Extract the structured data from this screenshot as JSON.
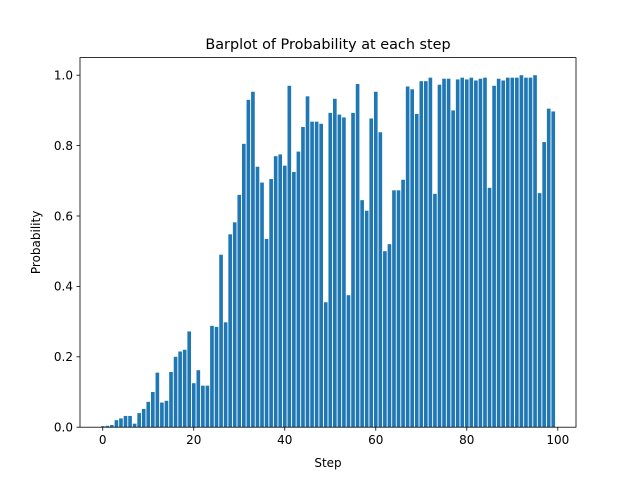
{
  "chart_data": {
    "type": "bar",
    "title": "Barplot of Probability at each step",
    "xlabel": "Step",
    "ylabel": "Probability",
    "xlim": [
      -5,
      104
    ],
    "ylim": [
      0,
      1.05
    ],
    "xticks": [
      0,
      20,
      40,
      60,
      80,
      100
    ],
    "yticks": [
      0.0,
      0.2,
      0.4,
      0.6,
      0.8,
      1.0
    ],
    "xtick_labels": [
      "0",
      "20",
      "40",
      "60",
      "80",
      "100"
    ],
    "ytick_labels": [
      "0.0",
      "0.2",
      "0.4",
      "0.6",
      "0.8",
      "1.0"
    ],
    "bar_color": "#1f77b4",
    "x": [
      0,
      1,
      2,
      3,
      4,
      5,
      6,
      7,
      8,
      9,
      10,
      11,
      12,
      13,
      14,
      15,
      16,
      17,
      18,
      19,
      20,
      21,
      22,
      23,
      24,
      25,
      26,
      27,
      28,
      29,
      30,
      31,
      32,
      33,
      34,
      35,
      36,
      37,
      38,
      39,
      40,
      41,
      42,
      43,
      44,
      45,
      46,
      47,
      48,
      49,
      50,
      51,
      52,
      53,
      54,
      55,
      56,
      57,
      58,
      59,
      60,
      61,
      62,
      63,
      64,
      65,
      66,
      67,
      68,
      69,
      70,
      71,
      72,
      73,
      74,
      75,
      76,
      77,
      78,
      79,
      80,
      81,
      82,
      83,
      84,
      85,
      86,
      87,
      88,
      89,
      90,
      91,
      92,
      93,
      94,
      95,
      96,
      97,
      98,
      99
    ],
    "values": [
      0.003,
      0.004,
      0.006,
      0.02,
      0.025,
      0.032,
      0.032,
      0.01,
      0.04,
      0.052,
      0.072,
      0.1,
      0.155,
      0.07,
      0.075,
      0.157,
      0.2,
      0.215,
      0.22,
      0.272,
      0.125,
      0.162,
      0.118,
      0.118,
      0.288,
      0.285,
      0.49,
      0.298,
      0.548,
      0.582,
      0.66,
      0.805,
      0.93,
      0.953,
      0.74,
      0.695,
      0.535,
      0.705,
      0.77,
      0.775,
      0.743,
      0.97,
      0.725,
      0.783,
      0.853,
      0.94,
      0.868,
      0.868,
      0.862,
      0.355,
      0.893,
      0.933,
      0.888,
      0.88,
      0.375,
      0.893,
      0.975,
      0.645,
      0.615,
      0.877,
      0.953,
      0.838,
      0.5,
      0.52,
      0.673,
      0.673,
      0.703,
      0.968,
      0.96,
      0.89,
      0.983,
      0.983,
      0.993,
      0.663,
      0.973,
      0.99,
      0.99,
      0.9,
      0.988,
      0.993,
      0.988,
      0.993,
      0.985,
      0.99,
      0.993,
      0.68,
      0.97,
      0.99,
      0.985,
      0.993,
      0.993,
      0.993,
      1.0,
      0.993,
      0.993,
      1.0,
      0.665,
      0.81,
      0.905,
      0.897
    ]
  }
}
